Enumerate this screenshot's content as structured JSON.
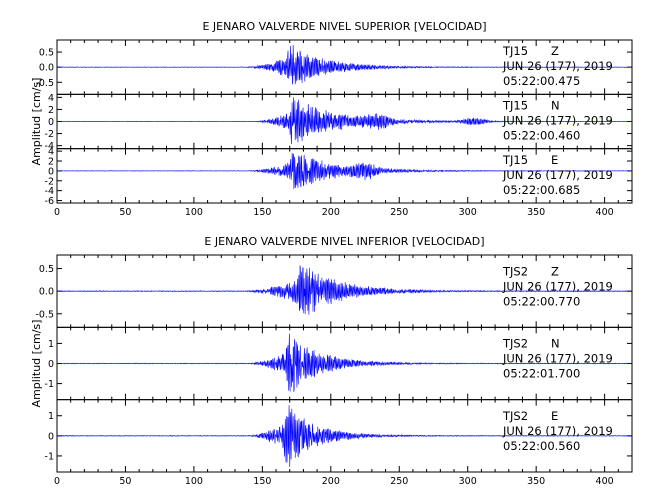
{
  "chart_data": [
    {
      "type": "line",
      "title": "E JENARO VALVERDE NIVEL SUPERIOR [VELOCIDAD]",
      "ylabel": "Amplitud [cm/s]",
      "xlabel": "",
      "xlim": [
        0,
        420
      ],
      "x_ticks": [
        "0",
        "50",
        "100",
        "150",
        "200",
        "250",
        "300",
        "350",
        "400"
      ],
      "grid": false,
      "panels": [
        {
          "station": "TJ15",
          "component": "Z",
          "date": "JUN 26 (177), 2019",
          "time": "05:22:00.475",
          "ylim": [
            -0.9,
            0.9
          ],
          "y_ticks": [
            "-0.5",
            "0.0",
            "0.5"
          ],
          "onset": 138,
          "peak_time": 170,
          "peak_amp": 0.85,
          "decay": 24,
          "noise": 0.01,
          "bursts": []
        },
        {
          "station": "TJ15",
          "component": "N",
          "date": "JUN 26 (177), 2019",
          "time": "05:22:00.460",
          "ylim": [
            -4.5,
            4.5
          ],
          "y_ticks": [
            "-4",
            "-2",
            "0",
            "2",
            "4"
          ],
          "onset": 145,
          "peak_time": 172,
          "peak_amp": 4.2,
          "decay": 32,
          "noise": 0.04,
          "bursts": [
            [
              235,
              1.0
            ],
            [
              305,
              0.7
            ]
          ]
        },
        {
          "station": "TJ15",
          "component": "E",
          "date": "JUN 26 (177), 2019",
          "time": "05:22:00.685",
          "ylim": [
            -6.5,
            4.5
          ],
          "y_ticks": [
            "-6",
            "-4",
            "-2",
            "0",
            "2",
            "4"
          ],
          "onset": 140,
          "peak_time": 172,
          "peak_amp": 4.3,
          "decay": 30,
          "noise": 0.05,
          "bursts": [
            [
              225,
              1.2
            ]
          ]
        }
      ]
    },
    {
      "type": "line",
      "title": "E JENARO VALVERDE NIVEL INFERIOR [VELOCIDAD]",
      "ylabel": "Amplitud [cm/s]",
      "xlabel": "",
      "xlim": [
        0,
        420
      ],
      "x_ticks": [
        "0",
        "50",
        "100",
        "150",
        "200",
        "250",
        "300",
        "350",
        "400"
      ],
      "grid": false,
      "panels": [
        {
          "station": "TJS2",
          "component": "Z",
          "date": "JUN 26 (177), 2019",
          "time": "05:22:00.770",
          "ylim": [
            -0.8,
            0.8
          ],
          "y_ticks": [
            "-0.5",
            "0.0",
            "0.5"
          ],
          "onset": 138,
          "peak_time": 178,
          "peak_amp": 0.7,
          "decay": 26,
          "noise": 0.01,
          "bursts": []
        },
        {
          "station": "TJS2",
          "component": "N",
          "date": "JUN 26 (177), 2019",
          "time": "05:22:01.700",
          "ylim": [
            -1.8,
            1.8
          ],
          "y_ticks": [
            "-1",
            "0",
            "1"
          ],
          "onset": 140,
          "peak_time": 170,
          "peak_amp": 1.6,
          "decay": 22,
          "noise": 0.02,
          "bursts": []
        },
        {
          "station": "TJS2",
          "component": "E",
          "date": "JUN 26 (177), 2019",
          "time": "05:22:00.560",
          "ylim": [
            -1.8,
            1.8
          ],
          "y_ticks": [
            "-1",
            "0",
            "1"
          ],
          "onset": 140,
          "peak_time": 168,
          "peak_amp": 1.7,
          "decay": 20,
          "noise": 0.02,
          "bursts": []
        }
      ]
    }
  ],
  "colors": {
    "trace": "#0000ff",
    "axis": "#000000"
  }
}
